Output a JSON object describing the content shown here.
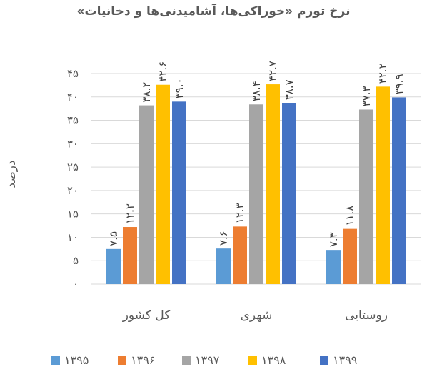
{
  "chart_data": {
    "type": "bar",
    "title": "نرخ تورم «خوراکی‌ها، آشامیدنی‌ها و دخانیات»",
    "ylabel": "درصد",
    "xlabel": "",
    "ylim": [
      0,
      45
    ],
    "y_ticks": [
      0,
      5,
      10,
      15,
      20,
      25,
      30,
      35,
      40,
      45
    ],
    "y_tick_labels": [
      "۰",
      "۵",
      "۱۰",
      "۱۵",
      "۲۰",
      "۲۵",
      "۳۰",
      "۳۵",
      "۴۰",
      "۴۵"
    ],
    "grid": true,
    "legend_position": "bottom",
    "categories": [
      "کل کشور",
      "شهری",
      "روستایی"
    ],
    "series": [
      {
        "name": "۱۳۹۵",
        "color": "#5B9BD5",
        "values": [
          7.5,
          7.6,
          7.3
        ],
        "labels": [
          "۷.۵",
          "۷.۶",
          "۷.۳"
        ]
      },
      {
        "name": "۱۳۹۶",
        "color": "#ED7D31",
        "values": [
          12.2,
          12.3,
          11.8
        ],
        "labels": [
          "۱۲.۲",
          "۱۲.۳",
          "۱۱.۸"
        ]
      },
      {
        "name": "۱۳۹۷",
        "color": "#A5A5A5",
        "values": [
          38.2,
          38.4,
          37.3
        ],
        "labels": [
          "۳۸.۲",
          "۳۸.۴",
          "۳۷.۳"
        ]
      },
      {
        "name": "۱۳۹۸",
        "color": "#FFC000",
        "values": [
          42.6,
          42.7,
          42.2
        ],
        "labels": [
          "۴۲.۶",
          "۴۲.۷",
          "۴۲.۲"
        ]
      },
      {
        "name": "۱۳۹۹",
        "color": "#4472C4",
        "values": [
          39.0,
          38.7,
          39.9
        ],
        "labels": [
          "۳۹.۰",
          "۳۸.۷",
          "۳۹.۹"
        ]
      }
    ]
  }
}
